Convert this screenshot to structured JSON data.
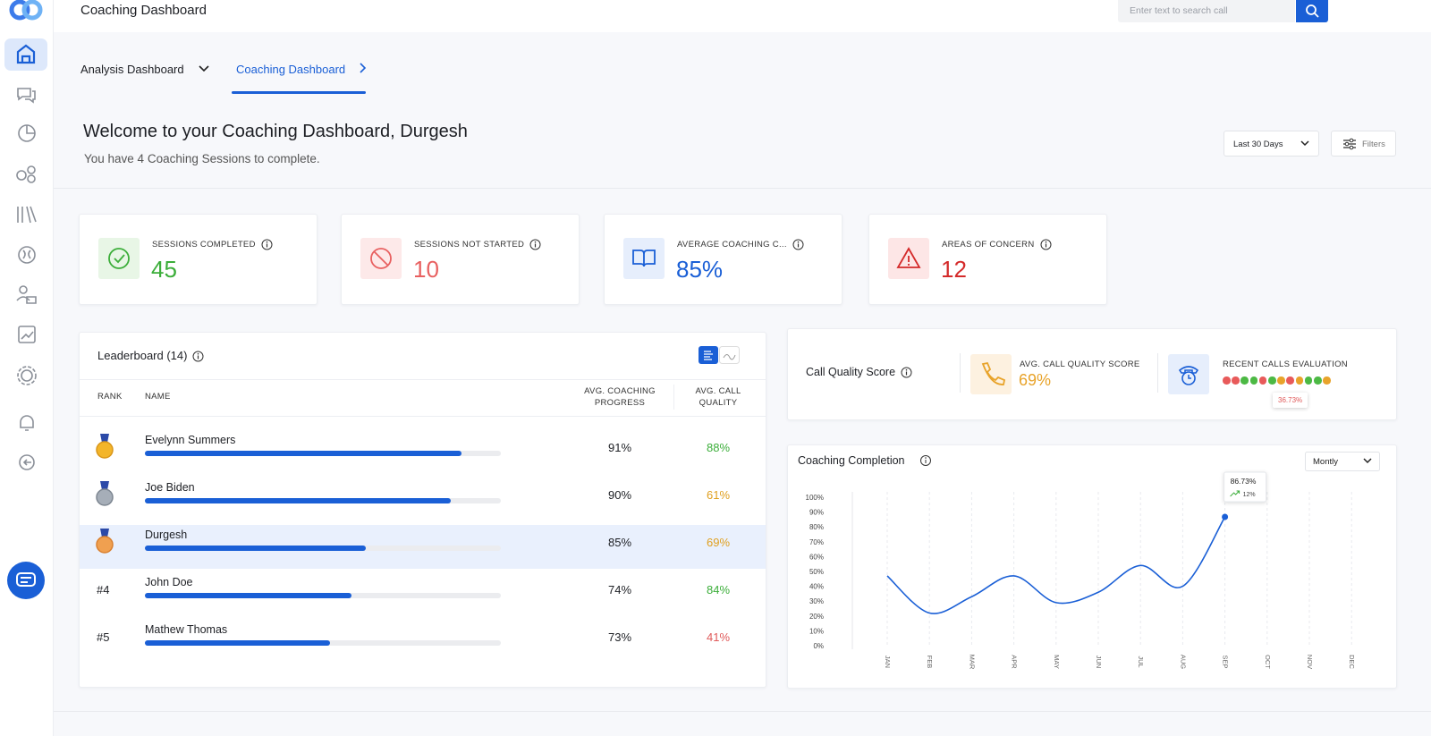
{
  "header": {
    "title": "Coaching Dashboard",
    "search_placeholder": "Enter text to search call"
  },
  "tabs": [
    {
      "label": "Analysis Dashboard"
    },
    {
      "label": "Coaching Dashboard",
      "active": true
    }
  ],
  "welcome": {
    "title": "Welcome to your Coaching Dashboard, Durgesh",
    "subtitle": "You have 4 Coaching Sessions to complete."
  },
  "controls": {
    "date_range": "Last 30 Days",
    "filters": "Filters"
  },
  "stats": [
    {
      "label": "SESSIONS COMPLETED",
      "value": "45",
      "color": "#3cae3a",
      "icon_bg": "#e8f6e6",
      "icon": "check"
    },
    {
      "label": "SESSIONS NOT STARTED",
      "value": "10",
      "color": "#e86060",
      "icon_bg": "#fde9e9",
      "icon": "ban"
    },
    {
      "label": "AVERAGE COACHING C...",
      "value": "85%",
      "color": "#1a5fd6",
      "icon_bg": "#e6eefc",
      "icon": "book"
    },
    {
      "label": "AREAS OF CONCERN",
      "value": "12",
      "color": "#d42a2a",
      "icon_bg": "#fde6e6",
      "icon": "alert"
    }
  ],
  "leaderboard": {
    "title": "Leaderboard (14)",
    "columns": [
      "RANK",
      "NAME",
      "AVG. COACHING PROGRESS",
      "AVG. CALL QUALITY"
    ],
    "rows": [
      {
        "medal": "gold",
        "name": "Evelynn Summers",
        "bar_fill": 89,
        "progress": "91%",
        "quality": "88%",
        "quality_color": "#3cae3a"
      },
      {
        "medal": "silver",
        "name": "Joe Biden",
        "bar_fill": 86,
        "progress": "90%",
        "quality": "61%",
        "quality_color": "#e0a020"
      },
      {
        "medal": "bronze",
        "name": "Durgesh",
        "bar_fill": 62,
        "progress": "85%",
        "quality": "69%",
        "quality_color": "#e0a020",
        "highlighted": true
      },
      {
        "rank": "#4",
        "name": "John Doe",
        "bar_fill": 58,
        "progress": "74%",
        "quality": "84%",
        "quality_color": "#3cae3a"
      },
      {
        "rank": "#5",
        "name": "Mathew Thomas",
        "bar_fill": 52,
        "progress": "73%",
        "quality": "41%",
        "quality_color": "#e05a5a"
      }
    ]
  },
  "call_quality": {
    "title": "Call Quality Score",
    "avg": {
      "label": "AVG. CALL QUALITY SCORE",
      "value": "69%",
      "color": "#e8a32a"
    },
    "recent": {
      "label": "RECENT CALLS EVALUATION",
      "tooltip": "36.73%",
      "dots": [
        "#e85a5a",
        "#e85a5a",
        "#4cb944",
        "#4cb944",
        "#e85a5a",
        "#4cb944",
        "#e8a32a",
        "#e85a5a",
        "#e8a32a",
        "#4cb944",
        "#4cb944",
        "#e8a32a"
      ]
    }
  },
  "chart_data": {
    "type": "line",
    "title": "Coaching Completion",
    "period": "Montly",
    "categories": [
      "JAN",
      "FEB",
      "MAR",
      "APR",
      "MAY",
      "JUN",
      "JUL",
      "AUG",
      "SEP",
      "OCT",
      "NOV",
      "DEC"
    ],
    "values": [
      47,
      22,
      33,
      47,
      29,
      36,
      54,
      40,
      86.73,
      null,
      null,
      null
    ],
    "color": "#1a5fd6",
    "ylim": [
      0,
      100
    ],
    "yticks": [
      {
        "value": 0,
        "label": "0%"
      },
      {
        "value": 10,
        "label": "10%"
      },
      {
        "value": 20,
        "label": "20%"
      },
      {
        "value": 30,
        "label": "30%"
      },
      {
        "value": 40,
        "label": "40%"
      },
      {
        "value": 50,
        "label": "50%"
      },
      {
        "value": 60,
        "label": "60%"
      },
      {
        "value": 70,
        "label": "70%"
      },
      {
        "value": 80,
        "label": "80%"
      },
      {
        "value": 90,
        "label": "90%"
      },
      {
        "value": 100,
        "label": "100%"
      }
    ],
    "grid": true,
    "annotation": {
      "x": "SEP",
      "label": "86.73%",
      "change": "12%"
    }
  }
}
